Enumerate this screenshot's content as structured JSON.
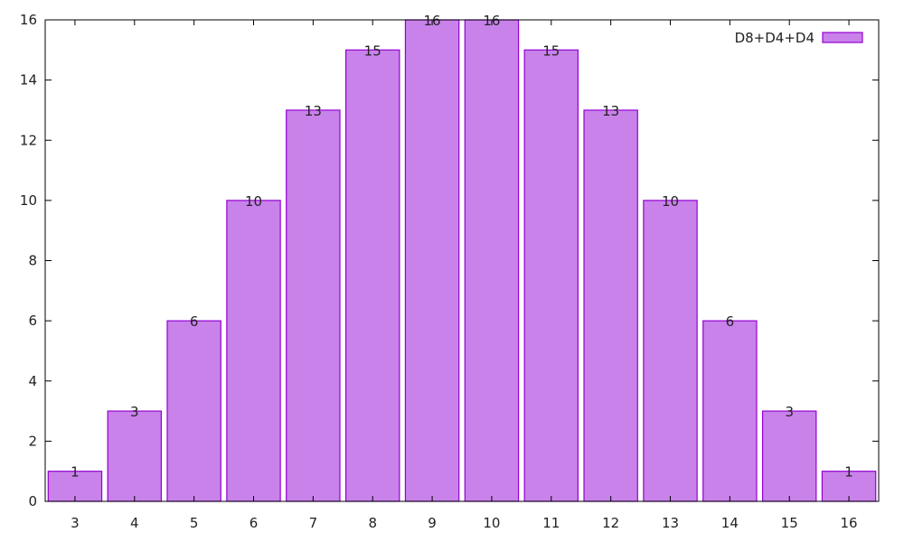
{
  "chart_data": {
    "type": "bar",
    "title": "",
    "xlabel": "",
    "ylabel": "",
    "categories": [
      "3",
      "4",
      "5",
      "6",
      "7",
      "8",
      "9",
      "10",
      "11",
      "12",
      "13",
      "14",
      "15",
      "16"
    ],
    "series": [
      {
        "name": "D8+D4+D4",
        "values": [
          1,
          3,
          6,
          10,
          13,
          15,
          16,
          16,
          15,
          13,
          10,
          6,
          3,
          1
        ]
      }
    ],
    "ylim": [
      0,
      16
    ],
    "yticks": [
      0,
      2,
      4,
      6,
      8,
      10,
      12,
      14,
      16
    ],
    "grid": false,
    "legend_position": "top-right",
    "data_labels": true,
    "colors": {
      "bar_fill": "#c882ea",
      "bar_stroke": "#9400d3",
      "axis": "#000000"
    }
  },
  "legend": {
    "label": "D8+D4+D4"
  }
}
